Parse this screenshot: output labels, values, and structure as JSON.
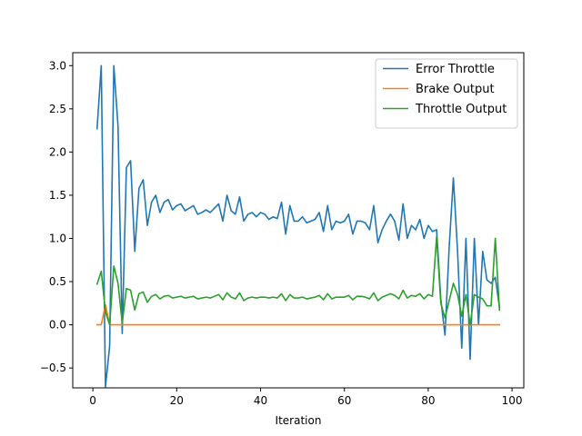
{
  "chart_data": {
    "type": "line",
    "title": "",
    "xlabel": "Iteration",
    "ylabel": "",
    "xlim": [
      -4.8,
      102.8
    ],
    "ylim": [
      -0.73,
      3.15
    ],
    "xticks": [
      0,
      20,
      40,
      60,
      80,
      100
    ],
    "yticks": [
      -0.5,
      0.0,
      0.5,
      1.0,
      1.5,
      2.0,
      2.5,
      3.0
    ],
    "xtick_labels": [
      "0",
      "20",
      "40",
      "60",
      "80",
      "100"
    ],
    "ytick_labels": [
      "−0.5",
      "0.0",
      "0.5",
      "1.0",
      "1.5",
      "2.0",
      "2.5",
      "3.0"
    ],
    "grid": false,
    "legend_position": "top-right",
    "x": [
      1,
      2,
      3,
      4,
      5,
      6,
      7,
      8,
      9,
      10,
      11,
      12,
      13,
      14,
      15,
      16,
      17,
      18,
      19,
      20,
      21,
      22,
      23,
      24,
      25,
      26,
      27,
      28,
      29,
      30,
      31,
      32,
      33,
      34,
      35,
      36,
      37,
      38,
      39,
      40,
      41,
      42,
      43,
      44,
      45,
      46,
      47,
      48,
      49,
      50,
      51,
      52,
      53,
      54,
      55,
      56,
      57,
      58,
      59,
      60,
      61,
      62,
      63,
      64,
      65,
      66,
      67,
      68,
      69,
      70,
      71,
      72,
      73,
      74,
      75,
      76,
      77,
      78,
      79,
      80,
      81,
      82,
      83,
      84,
      85,
      86,
      87,
      88,
      89,
      90,
      91,
      92,
      93,
      94,
      95,
      96,
      97
    ],
    "series": [
      {
        "name": "Error Throttle",
        "color": "#1f77b4",
        "values": [
          2.27,
          3.0,
          -0.72,
          -0.25,
          3.0,
          2.3,
          -0.1,
          1.82,
          1.9,
          0.85,
          1.58,
          1.68,
          1.15,
          1.42,
          1.5,
          1.3,
          1.42,
          1.45,
          1.33,
          1.38,
          1.4,
          1.32,
          1.35,
          1.38,
          1.28,
          1.3,
          1.33,
          1.3,
          1.35,
          1.4,
          1.2,
          1.5,
          1.32,
          1.28,
          1.48,
          1.2,
          1.28,
          1.3,
          1.25,
          1.3,
          1.28,
          1.22,
          1.25,
          1.23,
          1.42,
          1.05,
          1.38,
          1.2,
          1.2,
          1.25,
          1.18,
          1.2,
          1.22,
          1.3,
          1.08,
          1.38,
          1.1,
          1.2,
          1.18,
          1.2,
          1.28,
          1.05,
          1.2,
          1.2,
          1.18,
          1.1,
          1.38,
          0.95,
          1.1,
          1.2,
          1.28,
          1.2,
          0.98,
          1.4,
          1.0,
          1.15,
          1.1,
          1.22,
          1.0,
          1.15,
          1.08,
          1.1,
          0.3,
          -0.12,
          0.9,
          1.7,
          0.85,
          -0.27,
          1.0,
          -0.4,
          1.0,
          0.0,
          0.85,
          0.52,
          0.48,
          0.55,
          0.2
        ]
      },
      {
        "name": "Brake Output",
        "color": "#ff7f0e",
        "values": [
          0.0,
          0.0,
          0.23,
          0.0,
          0.0,
          0.0,
          0.0,
          0.0,
          0.0,
          0.0,
          0.0,
          0.0,
          0.0,
          0.0,
          0.0,
          0.0,
          0.0,
          0.0,
          0.0,
          0.0,
          0.0,
          0.0,
          0.0,
          0.0,
          0.0,
          0.0,
          0.0,
          0.0,
          0.0,
          0.0,
          0.0,
          0.0,
          0.0,
          0.0,
          0.0,
          0.0,
          0.0,
          0.0,
          0.0,
          0.0,
          0.0,
          0.0,
          0.0,
          0.0,
          0.0,
          0.0,
          0.0,
          0.0,
          0.0,
          0.0,
          0.0,
          0.0,
          0.0,
          0.0,
          0.0,
          0.0,
          0.0,
          0.0,
          0.0,
          0.0,
          0.0,
          0.0,
          0.0,
          0.0,
          0.0,
          0.0,
          0.0,
          0.0,
          0.0,
          0.0,
          0.0,
          0.0,
          0.0,
          0.0,
          0.0,
          0.0,
          0.0,
          0.0,
          0.0,
          0.0,
          0.0,
          0.0,
          0.0,
          0.0,
          0.0,
          0.0,
          0.0,
          0.0,
          0.0,
          0.0,
          0.0,
          0.0,
          0.0,
          0.0,
          0.0,
          0.0,
          0.0
        ]
      },
      {
        "name": "Throttle Output",
        "color": "#2ca02c",
        "values": [
          0.47,
          0.62,
          0.15,
          0.0,
          0.68,
          0.48,
          0.02,
          0.42,
          0.4,
          0.17,
          0.36,
          0.38,
          0.26,
          0.33,
          0.35,
          0.3,
          0.33,
          0.34,
          0.31,
          0.32,
          0.33,
          0.31,
          0.32,
          0.33,
          0.3,
          0.31,
          0.32,
          0.31,
          0.33,
          0.35,
          0.29,
          0.37,
          0.32,
          0.3,
          0.37,
          0.28,
          0.31,
          0.32,
          0.31,
          0.32,
          0.32,
          0.31,
          0.32,
          0.31,
          0.36,
          0.28,
          0.35,
          0.31,
          0.31,
          0.32,
          0.3,
          0.31,
          0.32,
          0.34,
          0.29,
          0.36,
          0.3,
          0.32,
          0.32,
          0.32,
          0.34,
          0.29,
          0.33,
          0.33,
          0.32,
          0.3,
          0.37,
          0.28,
          0.32,
          0.34,
          0.36,
          0.34,
          0.3,
          0.4,
          0.31,
          0.34,
          0.33,
          0.36,
          0.3,
          0.35,
          0.33,
          1.02,
          0.25,
          0.08,
          0.28,
          0.48,
          0.35,
          0.1,
          0.35,
          0.0,
          0.35,
          0.32,
          0.3,
          0.22,
          0.22,
          1.0,
          0.17
        ]
      }
    ]
  }
}
